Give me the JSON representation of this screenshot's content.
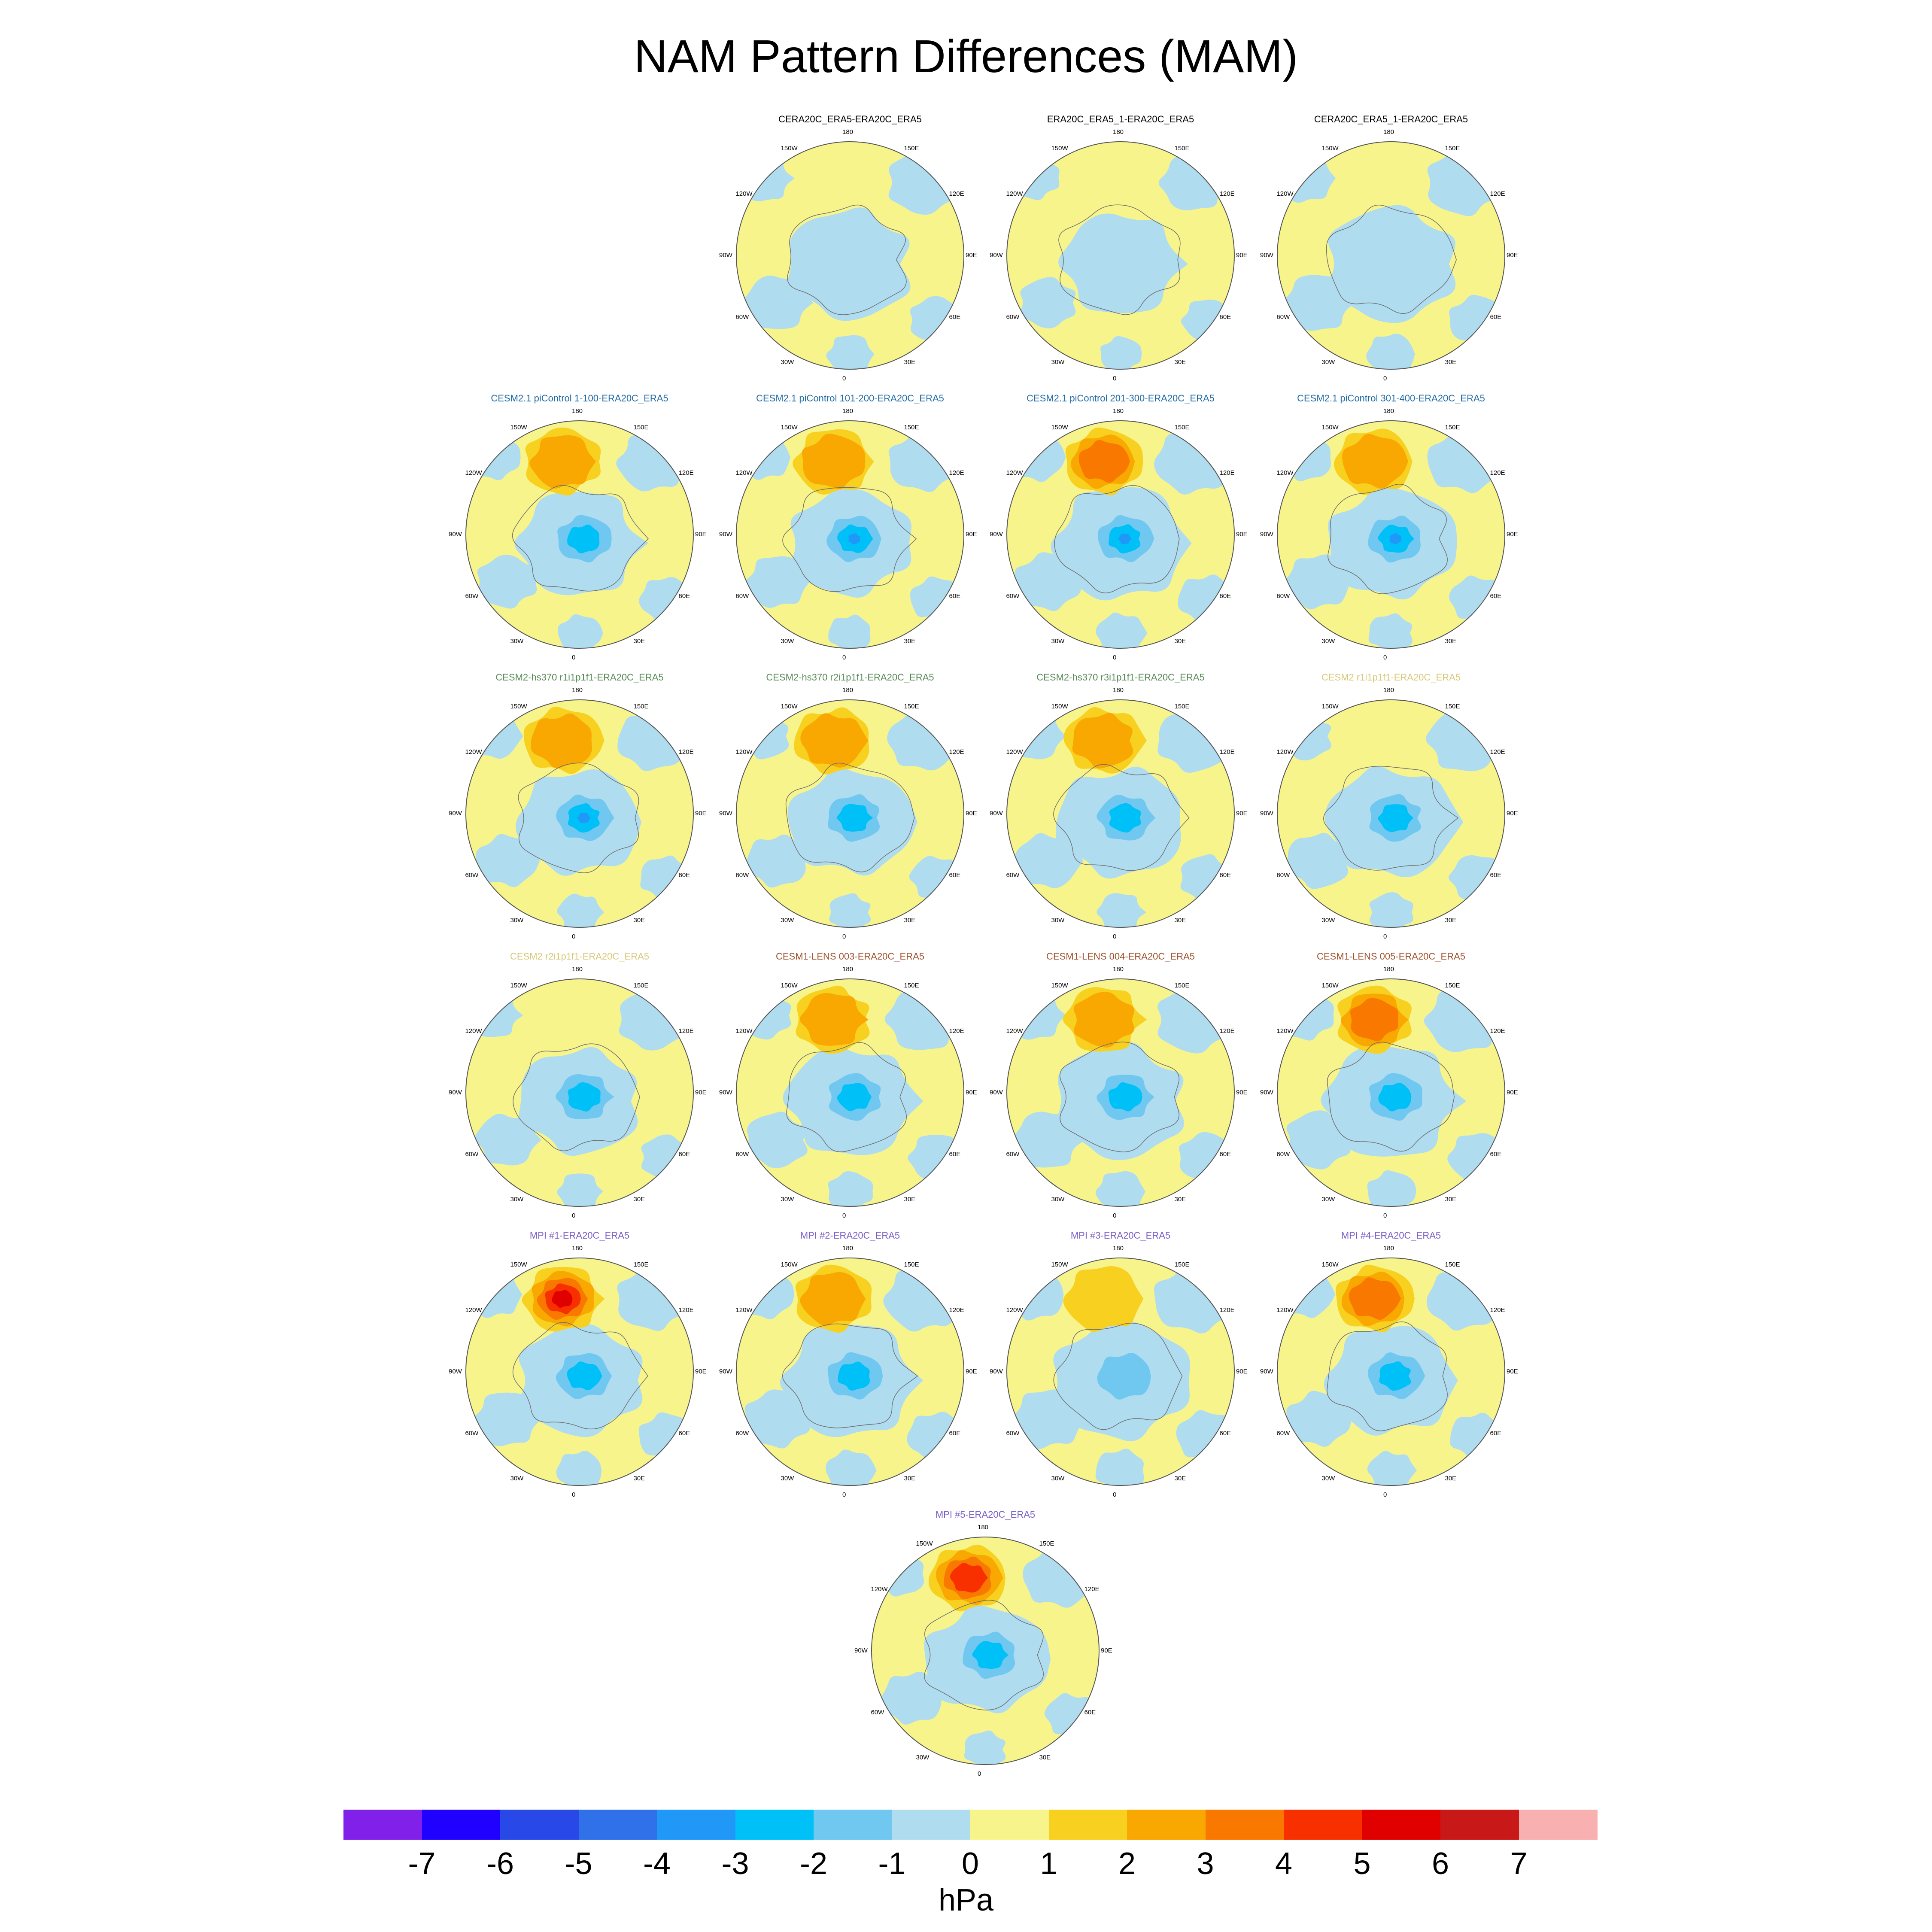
{
  "title": "NAM Pattern Differences (MAM)",
  "units": "hPa",
  "lon_labels": [
    "180",
    "150E",
    "120E",
    "90E",
    "60E",
    "30E",
    "0",
    "30W",
    "60W",
    "90W",
    "120W",
    "150W"
  ],
  "colorbar": {
    "ticks": [
      "-7",
      "-6",
      "-5",
      "-4",
      "-3",
      "-2",
      "-1",
      "0",
      "1",
      "2",
      "3",
      "4",
      "5",
      "6",
      "7"
    ],
    "colors": [
      "#8020e8",
      "#2000ff",
      "#2848e8",
      "#3070e8",
      "#2098f8",
      "#00c0f8",
      "#70c8f0",
      "#b0dcf0",
      "#f8f48c",
      "#f8d020",
      "#f8a800",
      "#f87800",
      "#f83000",
      "#e00000",
      "#c81818",
      "#f8b0b0"
    ]
  },
  "panels": [
    {
      "title": "CERA20C_ERA5-ERA20C_ERA5",
      "title_color": "#000000",
      "intensity": 0,
      "peak": 0,
      "low": 0,
      "blue": 0.5
    },
    {
      "title": "ERA20C_ERA5_1-ERA20C_ERA5",
      "title_color": "#000000",
      "intensity": 0,
      "peak": 0,
      "low": 0,
      "blue": 0.4
    },
    {
      "title": "CERA20C_ERA5_1-ERA20C_ERA5",
      "title_color": "#000000",
      "intensity": 0,
      "peak": 0,
      "low": 0,
      "blue": 0.55
    },
    {
      "title": "CESM2.1 piControl 1-100-ERA20C_ERA5",
      "title_color": "#1f6aa5",
      "intensity": 1,
      "peak": 2,
      "low": 2,
      "blue": 0.45
    },
    {
      "title": "CESM2.1 piControl 101-200-ERA20C_ERA5",
      "title_color": "#1f6aa5",
      "intensity": 1,
      "peak": 2,
      "low": 3,
      "blue": 0.45
    },
    {
      "title": "CESM2.1 piControl 201-300-ERA20C_ERA5",
      "title_color": "#1f6aa5",
      "intensity": 1,
      "peak": 3,
      "low": 3,
      "blue": 0.55
    },
    {
      "title": "CESM2.1 piControl 301-400-ERA20C_ERA5",
      "title_color": "#1f6aa5",
      "intensity": 1,
      "peak": 2,
      "low": 3,
      "blue": 0.5
    },
    {
      "title": "CESM2-hs370 r1i1p1f1-ERA20C_ERA5",
      "title_color": "#5a8a5a",
      "intensity": 1,
      "peak": 2,
      "low": 3,
      "blue": 0.45
    },
    {
      "title": "CESM2-hs370 r2i1p1f1-ERA20C_ERA5",
      "title_color": "#5a8a5a",
      "intensity": 1,
      "peak": 2,
      "low": 2,
      "blue": 0.45
    },
    {
      "title": "CESM2-hs370 r3i1p1f1-ERA20C_ERA5",
      "title_color": "#5a8a5a",
      "intensity": 1,
      "peak": 2,
      "low": 2,
      "blue": 0.5
    },
    {
      "title": "CESM2 r1i1p1f1-ERA20C_ERA5",
      "title_color": "#d8c878",
      "intensity": 0,
      "peak": 0,
      "low": 2,
      "blue": 0.5
    },
    {
      "title": "CESM2 r2i1p1f1-ERA20C_ERA5",
      "title_color": "#d8c878",
      "intensity": 0,
      "peak": 0,
      "low": 2,
      "blue": 0.45
    },
    {
      "title": "CESM1-LENS 003-ERA20C_ERA5",
      "title_color": "#a0522d",
      "intensity": 1,
      "peak": 2,
      "low": 2,
      "blue": 0.5
    },
    {
      "title": "CESM1-LENS 004-ERA20C_ERA5",
      "title_color": "#a0522d",
      "intensity": 1,
      "peak": 2,
      "low": 2,
      "blue": 0.55
    },
    {
      "title": "CESM1-LENS 005-ERA20C_ERA5",
      "title_color": "#a0522d",
      "intensity": 1,
      "peak": 3,
      "low": 2,
      "blue": 0.55
    },
    {
      "title": "MPI #1-ERA20C_ERA5",
      "title_color": "#7b5fc7",
      "intensity": 1,
      "peak": 5,
      "low": 2,
      "blue": 0.5
    },
    {
      "title": "MPI #2-ERA20C_ERA5",
      "title_color": "#7b5fc7",
      "intensity": 1,
      "peak": 2,
      "low": 2,
      "blue": 0.55
    },
    {
      "title": "MPI #3-ERA20C_ERA5",
      "title_color": "#7b5fc7",
      "intensity": 1,
      "peak": 1,
      "low": 1,
      "blue": 0.6
    },
    {
      "title": "MPI #4-ERA20C_ERA5",
      "title_color": "#7b5fc7",
      "intensity": 1,
      "peak": 3,
      "low": 2,
      "blue": 0.5
    },
    {
      "title": "MPI #5-ERA20C_ERA5",
      "title_color": "#7b5fc7",
      "intensity": 1,
      "peak": 4,
      "low": 2,
      "blue": 0.45
    }
  ]
}
